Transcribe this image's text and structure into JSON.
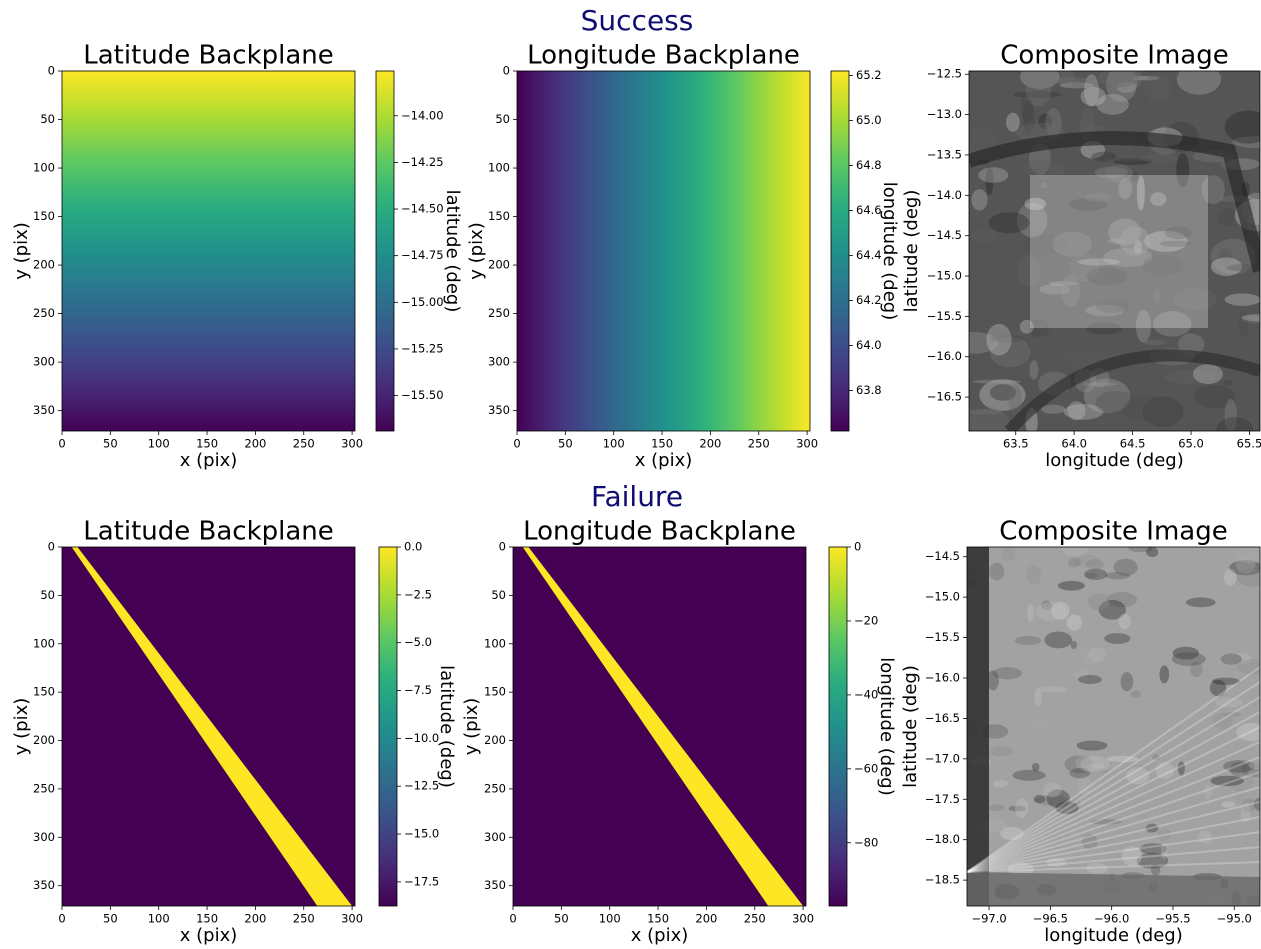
{
  "suptitles": [
    "Success",
    "Failure"
  ],
  "chart_data": [
    {
      "type": "image",
      "title": "Latitude Backplane",
      "xlabel": "x (pix)",
      "ylabel": "y (pix)",
      "xlim": [
        0,
        303
      ],
      "ylim": [
        371,
        0
      ],
      "xticks": [
        0,
        50,
        100,
        150,
        200,
        250,
        300
      ],
      "yticks": [
        0,
        50,
        100,
        150,
        200,
        250,
        300,
        350
      ],
      "colormap": "viridis",
      "image": {
        "direction": "vertical",
        "start": -13.76,
        "end": -15.69
      },
      "colorbar": {
        "label": "latitude (deg)",
        "lim": [
          -15.69,
          -13.76
        ],
        "ticks": [
          {
            "value": -14,
            "label": "−14.00"
          },
          {
            "value": -14.25,
            "label": "−14.25"
          },
          {
            "value": -14.5,
            "label": "−14.50"
          },
          {
            "value": -14.75,
            "label": "−14.75"
          },
          {
            "value": -15,
            "label": "−15.00"
          },
          {
            "value": -15.25,
            "label": "−15.25"
          },
          {
            "value": -15.5,
            "label": "−15.50"
          }
        ]
      }
    },
    {
      "type": "image",
      "title": "Longitude Backplane",
      "xlabel": "x (pix)",
      "ylabel": "y (pix)",
      "xlim": [
        0,
        303
      ],
      "ylim": [
        371,
        0
      ],
      "xticks": [
        0,
        50,
        100,
        150,
        200,
        250,
        300
      ],
      "yticks": [
        0,
        50,
        100,
        150,
        200,
        250,
        300,
        350
      ],
      "colormap": "viridis",
      "image": {
        "direction": "horizontal",
        "start": 63.62,
        "end": 65.22
      },
      "colorbar": {
        "label": "longitude (deg)",
        "lim": [
          63.62,
          65.22
        ],
        "ticks": [
          63.8,
          {
            "value": 64,
            "label": "64.0"
          },
          64.2,
          64.4,
          64.6,
          64.8,
          {
            "value": 65,
            "label": "65.0"
          },
          65.2
        ]
      }
    },
    {
      "type": "photo",
      "title": "Composite Image",
      "xlabel": "longitude (deg)",
      "ylabel": "latitude (deg)",
      "colormap": "gray",
      "xlim": [
        63.1,
        65.59
      ],
      "ylim": [
        -16.92,
        -12.46
      ],
      "xticks": [
        63.5,
        {
          "value": 64,
          "label": "64.0"
        },
        64.5,
        {
          "value": 65,
          "label": "65.0"
        },
        65.5
      ],
      "yticks": [
        {
          "value": -12.5,
          "label": "−12.5"
        },
        {
          "value": -13,
          "label": "−13.0"
        },
        {
          "value": -13.5,
          "label": "−13.5"
        },
        {
          "value": -14,
          "label": "−14.0"
        },
        {
          "value": -14.5,
          "label": "−14.5"
        },
        {
          "value": -15,
          "label": "−15.0"
        },
        {
          "value": -15.5,
          "label": "−15.5"
        },
        {
          "value": -16,
          "label": "−16.0"
        },
        {
          "value": -16.5,
          "label": "−16.5"
        }
      ]
    },
    {
      "type": "image",
      "title": "Latitude Backplane",
      "xlabel": "x (pix)",
      "ylabel": "y (pix)",
      "xlim": [
        0,
        303
      ],
      "ylim": [
        371,
        0
      ],
      "xticks": [
        0,
        50,
        100,
        150,
        200,
        250,
        300
      ],
      "yticks": [
        0,
        50,
        100,
        150,
        200,
        250,
        300,
        350
      ],
      "colormap": "viridis",
      "image": {
        "background": -18.76,
        "region": {
          "value": 0,
          "polygon": [
            [
              10,
              0
            ],
            [
              16,
              0
            ],
            [
              300,
              371
            ],
            [
              264,
              371
            ]
          ]
        }
      },
      "colorbar": {
        "label": "latitude (deg)",
        "lim": [
          -18.76,
          0
        ],
        "ticks": [
          {
            "value": 0,
            "label": "0.0"
          },
          {
            "value": -2.5,
            "label": "−2.5"
          },
          {
            "value": -5,
            "label": "−5.0"
          },
          {
            "value": -7.5,
            "label": "−7.5"
          },
          {
            "value": -10,
            "label": "−10.0"
          },
          {
            "value": -12.5,
            "label": "−12.5"
          },
          {
            "value": -15,
            "label": "−15.0"
          },
          {
            "value": -17.5,
            "label": "−17.5"
          }
        ]
      }
    },
    {
      "type": "image",
      "title": "Longitude Backplane",
      "xlabel": "x (pix)",
      "ylabel": "y (pix)",
      "xlim": [
        0,
        303
      ],
      "ylim": [
        371,
        0
      ],
      "xticks": [
        0,
        50,
        100,
        150,
        200,
        250,
        300
      ],
      "yticks": [
        0,
        50,
        100,
        150,
        200,
        250,
        300,
        350
      ],
      "colormap": "viridis",
      "image": {
        "background": -97.1,
        "region": {
          "value": 0,
          "polygon": [
            [
              10,
              0
            ],
            [
              16,
              0
            ],
            [
              300,
              371
            ],
            [
              264,
              371
            ]
          ]
        }
      },
      "colorbar": {
        "label": "longitude (deg)",
        "lim": [
          -97.1,
          0
        ],
        "ticks": [
          0,
          {
            "value": -20,
            "label": "−20"
          },
          {
            "value": -40,
            "label": "−40"
          },
          {
            "value": -60,
            "label": "−60"
          },
          {
            "value": -80,
            "label": "−80"
          }
        ]
      }
    },
    {
      "type": "photo",
      "title": "Composite Image",
      "xlabel": "longitude (deg)",
      "ylabel": "latitude (deg)",
      "colormap": "gray",
      "xlim": [
        -97.18,
        -94.79
      ],
      "ylim": [
        -18.82,
        -14.38
      ],
      "xticks": [
        {
          "value": -97,
          "label": "−97.0"
        },
        {
          "value": -96.5,
          "label": "−96.5"
        },
        {
          "value": -96,
          "label": "−96.0"
        },
        {
          "value": -95.5,
          "label": "−95.5"
        },
        {
          "value": -95,
          "label": "−95.0"
        }
      ],
      "yticks": [
        {
          "value": -14.5,
          "label": "−14.5"
        },
        {
          "value": -15,
          "label": "−15.0"
        },
        {
          "value": -15.5,
          "label": "−15.5"
        },
        {
          "value": -16,
          "label": "−16.0"
        },
        {
          "value": -16.5,
          "label": "−16.5"
        },
        {
          "value": -17,
          "label": "−17.0"
        },
        {
          "value": -17.5,
          "label": "−17.5"
        },
        {
          "value": -18,
          "label": "−18.0"
        },
        {
          "value": -18.5,
          "label": "−18.5"
        }
      ]
    }
  ]
}
